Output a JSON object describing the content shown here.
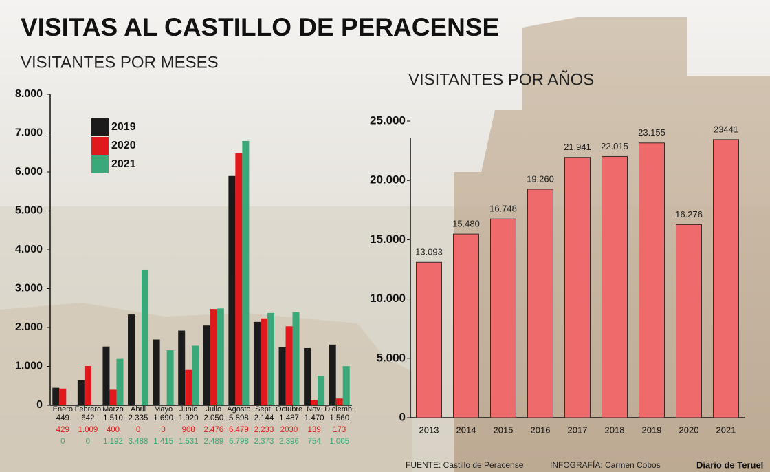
{
  "title": "VISITAS AL CASTILLO DE PERACENSE",
  "source": "FUENTE: Castillo de Peracense",
  "credit": "INFOGRAFÍA: Carmen Cobos",
  "brand": "Diario de Teruel",
  "chart_data": [
    {
      "type": "grouped_bar",
      "title": "VISITANTES POR MESES",
      "categories": [
        "Enero",
        "Febrero",
        "Marzo",
        "Abril",
        "Mayo",
        "Junio",
        "Julio",
        "Agosto",
        "Sept.",
        "Octubre",
        "Nov.",
        "Diciemb."
      ],
      "series": [
        {
          "name": "2019",
          "color": "#1b1b1b",
          "values": [
            449,
            642,
            1510,
            2335,
            1690,
            1920,
            2050,
            5898,
            2144,
            1487,
            1470,
            1560
          ],
          "value_labels": [
            "449",
            "642",
            "1.510",
            "2.335",
            "1.690",
            "1.920",
            "2.050",
            "5.898",
            "2.144",
            "1.487",
            "1.470",
            "1.560"
          ]
        },
        {
          "name": "2020",
          "color": "#e01a1c",
          "values": [
            429,
            1009,
            400,
            0,
            0,
            908,
            2476,
            6479,
            2233,
            2030,
            139,
            173
          ],
          "value_labels": [
            "429",
            "1.009",
            "400",
            "0",
            "0",
            "908",
            "2.476",
            "6.479",
            "2.233",
            "2030",
            "139",
            "173"
          ]
        },
        {
          "name": "2021",
          "color": "#3aa878",
          "values": [
            0,
            0,
            1192,
            3488,
            1415,
            1531,
            2489,
            6798,
            2373,
            2396,
            754,
            1005
          ],
          "value_labels": [
            "0",
            "0",
            "1.192",
            "3.488",
            "1.415",
            "1.531",
            "2.489",
            "6.798",
            "2.373",
            "2.396",
            "754",
            "1.005"
          ]
        }
      ],
      "ylim": [
        0,
        8000
      ],
      "yticks": [
        0,
        {
          "value": 1000,
          "label": "1.000"
        },
        {
          "value": 2000,
          "label": "2.000"
        },
        {
          "value": 3000,
          "label": "3.000"
        },
        {
          "value": 4000,
          "label": "4.000"
        },
        {
          "value": 5000,
          "label": "5.000"
        },
        {
          "value": 6000,
          "label": "6.000"
        },
        {
          "value": 7000,
          "label": "7.000"
        },
        {
          "value": 8000,
          "label": "8.000"
        }
      ]
    },
    {
      "type": "bar",
      "title": "VISITANTES POR AÑOS",
      "categories": [
        "2013",
        "2014",
        "2015",
        "2016",
        "2017",
        "2018",
        "2019",
        "2020",
        "2021"
      ],
      "values": [
        13093,
        15480,
        16748,
        19260,
        21941,
        22015,
        23155,
        16276,
        23441
      ],
      "value_labels": [
        "13.093",
        "15.480",
        "16.748",
        "19.260",
        "21.941",
        "22.015",
        "23.155",
        "16.276",
        "23441"
      ],
      "color": "#ef6a6b",
      "ylim": [
        0,
        25000
      ],
      "yticks": [
        0,
        {
          "value": 5000,
          "label": "5.000"
        },
        {
          "value": 10000,
          "label": "10.000"
        },
        {
          "value": 15000,
          "label": "15.000"
        },
        {
          "value": 20000,
          "label": "20.000"
        },
        {
          "value": 25000,
          "label": "25.000"
        }
      ]
    }
  ]
}
